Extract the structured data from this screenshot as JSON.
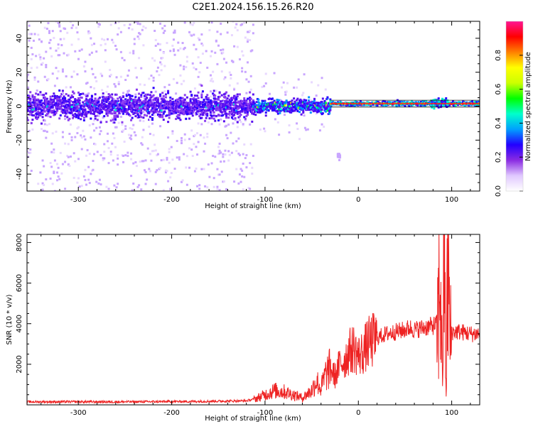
{
  "title": "C2E1.2024.156.15.26.R20",
  "colors": {
    "snr_line": "#ee2222",
    "spectrum_ridge": "#ff1a1a",
    "axis": "#000000"
  },
  "chart_data": [
    {
      "type": "heatmap",
      "xlabel": "Height of straight line (km)",
      "ylabel": "Frequency (Hz)",
      "xlim": [
        -355,
        130
      ],
      "ylim": [
        -50,
        50
      ],
      "xticks": [
        -300,
        -200,
        -100,
        0,
        100
      ],
      "yticks": [
        -40,
        -20,
        0,
        20,
        40
      ],
      "colorbar": {
        "label": "Normalized spectral amplitude",
        "range": [
          0,
          1
        ],
        "ticks": [
          0.0,
          0.2,
          0.4,
          0.6,
          0.8
        ],
        "colormap": [
          "#ffffff",
          "#e0c8ff",
          "#8a2be2",
          "#2200ff",
          "#00a0ff",
          "#00ffcc",
          "#00ff00",
          "#ccff00",
          "#ffff00",
          "#ff8000",
          "#ff0000",
          "#ff1493"
        ]
      },
      "regions": [
        {
          "x": [
            -355,
            -112
          ],
          "f_core": [
            -10,
            10
          ],
          "f_spread": [
            -50,
            50
          ],
          "level": "weak broadband"
        },
        {
          "x": [
            -112,
            -30
          ],
          "f_core": [
            -6,
            6
          ],
          "f_spread": [
            -15,
            15
          ],
          "level": "moderate, converging"
        },
        {
          "x": [
            -30,
            130
          ],
          "f_core": [
            1,
            2
          ],
          "f_spread": [
            0,
            3
          ],
          "level": "strong narrowband near 2 Hz"
        },
        {
          "x": [
            -22,
            -20
          ],
          "f_core": [
            -30,
            -28
          ],
          "level": "isolated weak patch"
        }
      ]
    },
    {
      "type": "line",
      "xlabel": "Height of straight line (km)",
      "ylabel": "SNR (10 * v/v)",
      "xlim": [
        -355,
        130
      ],
      "ylim": [
        0,
        8400
      ],
      "xticks": [
        -300,
        -200,
        -100,
        0,
        100
      ],
      "yticks": [
        2000,
        4000,
        6000,
        8000
      ],
      "series": [
        {
          "x": [
            -355,
            -300,
            -250,
            -200,
            -150,
            -120,
            -110,
            -100,
            -90,
            -80,
            -70,
            -60,
            -50,
            -45,
            -40,
            -35,
            -30,
            -25,
            -20,
            -15,
            -10,
            -5,
            0,
            5,
            10,
            20,
            30,
            40,
            50,
            55,
            60,
            70,
            80,
            85,
            88,
            90,
            92,
            94,
            96,
            98,
            100,
            110,
            120,
            130
          ],
          "y": [
            150,
            150,
            150,
            160,
            180,
            200,
            300,
            500,
            700,
            650,
            500,
            350,
            700,
            1200,
            800,
            1500,
            1800,
            1400,
            2000,
            2200,
            2600,
            2800,
            2400,
            2600,
            3000,
            3300,
            3500,
            3600,
            3700,
            3800,
            3700,
            3800,
            3900,
            4000,
            6500,
            1200,
            7800,
            400,
            8200,
            3000,
            3600,
            3600,
            3500,
            3500
          ]
        }
      ]
    }
  ]
}
